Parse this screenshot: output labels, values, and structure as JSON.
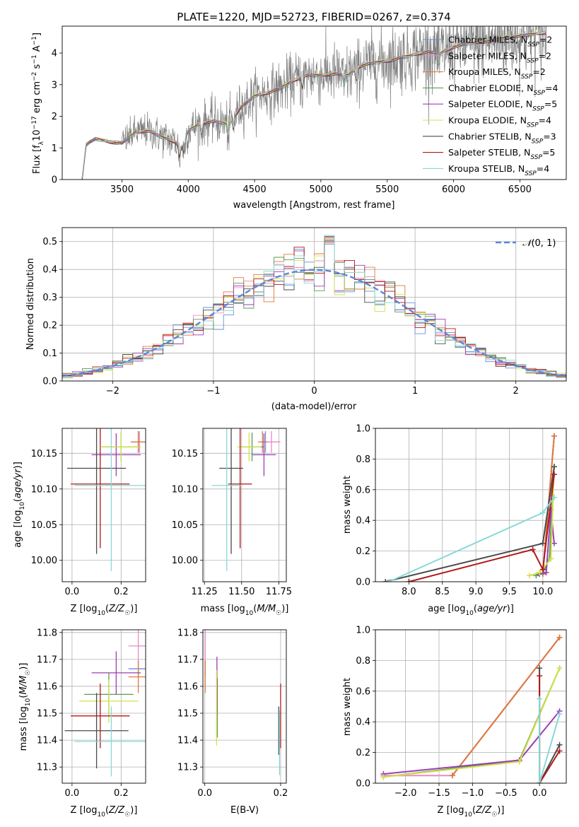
{
  "colors": {
    "chabrier_miles": "#6a8fd8",
    "salpeter_miles": "#e88ac8",
    "kroupa_miles": "#e07a3a",
    "chabrier_elodie": "#5a9a5a",
    "salpeter_elodie": "#9b3fb5",
    "kroupa_elodie": "#d4e04a",
    "chabrier_stelib": "#4a4a4a",
    "salpeter_stelib": "#b01818",
    "kroupa_stelib": "#88d8d8",
    "gaussian": "#5b86d9",
    "data": "#808080",
    "grid": "#b0b0b0"
  },
  "chart_data": [
    {
      "id": "spectrum",
      "type": "line",
      "title": "PLATE=1220, MJD=52723, FIBERID=0267, z=0.374",
      "xlabel": "wavelength [Angstrom, rest frame]",
      "ylabel": "Flux [f_λ 10^-17 erg cm^-2 s^-1 A^-1]",
      "xlim": [
        3050,
        6850
      ],
      "ylim": [
        0,
        4.85
      ],
      "xticks": [
        3500,
        4000,
        4500,
        5000,
        5500,
        6000,
        6500
      ],
      "yticks": [
        0,
        1,
        2,
        3,
        4
      ],
      "grid": false,
      "legend_position": "top-right",
      "continuum_points": [
        [
          3200,
          0.02
        ],
        [
          3230,
          1.1
        ],
        [
          3300,
          1.3
        ],
        [
          3400,
          1.2
        ],
        [
          3500,
          1.15
        ],
        [
          3600,
          1.5
        ],
        [
          3700,
          1.55
        ],
        [
          3800,
          1.35
        ],
        [
          3900,
          1.2
        ],
        [
          3950,
          1.0
        ],
        [
          4000,
          1.55
        ],
        [
          4100,
          1.8
        ],
        [
          4200,
          1.85
        ],
        [
          4300,
          1.75
        ],
        [
          4400,
          2.3
        ],
        [
          4500,
          2.65
        ],
        [
          4600,
          2.75
        ],
        [
          4700,
          2.9
        ],
        [
          4800,
          3.15
        ],
        [
          4900,
          3.3
        ],
        [
          5000,
          3.3
        ],
        [
          5100,
          3.35
        ],
        [
          5200,
          3.3
        ],
        [
          5300,
          3.6
        ],
        [
          5400,
          3.7
        ],
        [
          5500,
          3.75
        ],
        [
          5600,
          3.85
        ],
        [
          5700,
          3.95
        ],
        [
          5800,
          4.05
        ],
        [
          5900,
          4.0
        ],
        [
          6000,
          4.2
        ],
        [
          6100,
          4.3
        ],
        [
          6200,
          4.35
        ],
        [
          6300,
          4.4
        ],
        [
          6400,
          4.5
        ],
        [
          6500,
          4.55
        ],
        [
          6600,
          4.6
        ],
        [
          6700,
          4.65
        ]
      ],
      "series": [
        {
          "name": "Chabrier MILES, N_SSP=2",
          "color_key": "chabrier_miles"
        },
        {
          "name": "Salpeter MILES, N_SSP=2",
          "color_key": "salpeter_miles"
        },
        {
          "name": "Kroupa MILES, N_SSP=2",
          "color_key": "kroupa_miles"
        },
        {
          "name": "Chabrier ELODIE, N_SSP=4",
          "color_key": "chabrier_elodie"
        },
        {
          "name": "Salpeter ELODIE, N_SSP=5",
          "color_key": "salpeter_elodie"
        },
        {
          "name": "Kroupa ELODIE, N_SSP=4",
          "color_key": "kroupa_elodie"
        },
        {
          "name": "Chabrier STELIB, N_SSP=3",
          "color_key": "chabrier_stelib"
        },
        {
          "name": "Salpeter STELIB, N_SSP=5",
          "color_key": "salpeter_stelib"
        },
        {
          "name": "Kroupa STELIB, N_SSP=4",
          "color_key": "kroupa_stelib"
        }
      ]
    },
    {
      "id": "residuals",
      "type": "histogram",
      "xlabel": "(data-model)/error",
      "ylabel": "Normed distribution",
      "xlim": [
        -2.5,
        2.5
      ],
      "ylim": [
        0,
        0.55
      ],
      "xticks": [
        -2,
        -1,
        0,
        1,
        2
      ],
      "yticks": [
        0.0,
        0.1,
        0.2,
        0.3,
        0.4,
        0.5
      ],
      "grid": true,
      "legend_position": "top-right",
      "legend": [
        "N(0, 1)"
      ],
      "bin_width": 0.1,
      "gaussian": {
        "mean": 0,
        "sigma": 1
      }
    },
    {
      "id": "age_vs_Z",
      "type": "errorbar",
      "xlabel": "Z [log10(Z/Z☉)]",
      "ylabel": "age  [log10(age/yr)]",
      "xlim": [
        -0.04,
        0.3
      ],
      "ylim": [
        9.97,
        10.185
      ],
      "xticks": [
        0.0,
        0.2
      ],
      "yticks": [
        10.0,
        10.05,
        10.1,
        10.15
      ],
      "grid": true,
      "points": [
        {
          "c": "chabrier_miles",
          "x": 0.27,
          "xe": 0.03,
          "y": 10.166,
          "ye": 0.015
        },
        {
          "c": "salpeter_miles",
          "x": 0.275,
          "xe": 0.03,
          "y": 10.166,
          "ye": 0.015
        },
        {
          "c": "kroupa_miles",
          "x": 0.27,
          "xe": 0.03,
          "y": 10.166,
          "ye": 0.015
        },
        {
          "c": "chabrier_elodie",
          "x": 0.2,
          "xe": 0.08,
          "y": 10.159,
          "ye": 0.02
        },
        {
          "c": "salpeter_elodie",
          "x": 0.18,
          "xe": 0.1,
          "y": 10.148,
          "ye": 0.03
        },
        {
          "c": "kroupa_elodie",
          "x": 0.2,
          "xe": 0.08,
          "y": 10.159,
          "ye": 0.02
        },
        {
          "c": "chabrier_stelib",
          "x": 0.1,
          "xe": 0.12,
          "y": 10.129,
          "ye": 0.12
        },
        {
          "c": "salpeter_stelib",
          "x": 0.115,
          "xe": 0.12,
          "y": 10.107,
          "ye": 0.09
        },
        {
          "c": "kroupa_stelib",
          "x": 0.16,
          "xe": 0.15,
          "y": 10.105,
          "ye": 0.12
        }
      ]
    },
    {
      "id": "age_vs_mass",
      "type": "errorbar",
      "xlabel": "mass [log10(M/M☉)]",
      "xlim": [
        11.24,
        11.8
      ],
      "ylim": [
        9.97,
        10.185
      ],
      "xticks": [
        11.25,
        11.5,
        11.75
      ],
      "yticks": [
        10.0,
        10.05,
        10.1,
        10.15
      ],
      "grid": true,
      "points": [
        {
          "c": "chabrier_miles",
          "x": 11.66,
          "xe": 0.03,
          "y": 10.166,
          "ye": 0.015
        },
        {
          "c": "salpeter_miles",
          "x": 11.7,
          "xe": 0.06,
          "y": 10.166,
          "ye": 0.015
        },
        {
          "c": "kroupa_miles",
          "x": 11.64,
          "xe": 0.03,
          "y": 10.166,
          "ye": 0.015
        },
        {
          "c": "chabrier_elodie",
          "x": 11.57,
          "xe": 0.08,
          "y": 10.159,
          "ye": 0.02
        },
        {
          "c": "salpeter_elodie",
          "x": 11.65,
          "xe": 0.08,
          "y": 10.148,
          "ye": 0.03
        },
        {
          "c": "kroupa_elodie",
          "x": 11.55,
          "xe": 0.08,
          "y": 10.159,
          "ye": 0.02
        },
        {
          "c": "chabrier_stelib",
          "x": 11.43,
          "xe": 0.08,
          "y": 10.129,
          "ye": 0.12
        },
        {
          "c": "salpeter_stelib",
          "x": 11.49,
          "xe": 0.08,
          "y": 10.107,
          "ye": 0.09
        },
        {
          "c": "kroupa_stelib",
          "x": 11.4,
          "xe": 0.1,
          "y": 10.105,
          "ye": 0.12
        }
      ]
    },
    {
      "id": "mass_weight_vs_age",
      "type": "line",
      "xlabel": "age  [log10(age/yr)]",
      "ylabel": "mass weight",
      "xlim": [
        7.5,
        10.35
      ],
      "ylim": [
        0,
        1.0
      ],
      "xticks": [
        8.0,
        8.5,
        9.0,
        9.5,
        10.0
      ],
      "yticks": [
        0.0,
        0.2,
        0.4,
        0.6,
        0.8,
        1.0
      ],
      "grid": true,
      "series": [
        {
          "c": "chabrier_miles",
          "x": [
            10.0,
            10.17
          ],
          "y": [
            0.05,
            0.95
          ]
        },
        {
          "c": "salpeter_miles",
          "x": [
            10.0,
            10.17
          ],
          "y": [
            0.05,
            0.95
          ]
        },
        {
          "c": "kroupa_miles",
          "x": [
            10.0,
            10.17
          ],
          "y": [
            0.05,
            0.95
          ]
        },
        {
          "c": "chabrier_elodie",
          "x": [
            9.9,
            10.0,
            10.1,
            10.17
          ],
          "y": [
            0.04,
            0.06,
            0.15,
            0.75
          ]
        },
        {
          "c": "salpeter_elodie",
          "x": [
            9.95,
            10.05,
            10.12,
            10.17
          ],
          "y": [
            0.05,
            0.06,
            0.47,
            0.25
          ]
        },
        {
          "c": "kroupa_elodie",
          "x": [
            9.8,
            9.95,
            10.12,
            10.17
          ],
          "y": [
            0.04,
            0.06,
            0.15,
            0.75
          ]
        },
        {
          "c": "chabrier_stelib",
          "x": [
            7.65,
            10.0,
            10.17
          ],
          "y": [
            0.0,
            0.25,
            0.75
          ]
        },
        {
          "c": "salpeter_stelib",
          "x": [
            8.0,
            9.85,
            10.0,
            10.17
          ],
          "y": [
            0.0,
            0.21,
            0.08,
            0.7
          ]
        },
        {
          "c": "kroupa_stelib",
          "x": [
            7.7,
            10.0,
            10.17
          ],
          "y": [
            0.0,
            0.45,
            0.55
          ]
        }
      ]
    },
    {
      "id": "mass_vs_Z",
      "type": "errorbar",
      "xlabel": "Z [log10(Z/Z☉)]",
      "ylabel": "mass [log10(M/M☉)]",
      "xlim": [
        -0.04,
        0.3
      ],
      "ylim": [
        11.24,
        11.81
      ],
      "xticks": [
        0.0,
        0.2
      ],
      "yticks": [
        11.3,
        11.4,
        11.5,
        11.6,
        11.7,
        11.8
      ],
      "grid": true,
      "points": [
        {
          "c": "chabrier_miles",
          "x": 0.27,
          "xe": 0.04,
          "y": 11.665,
          "ye": 0.03
        },
        {
          "c": "salpeter_miles",
          "x": 0.27,
          "xe": 0.04,
          "y": 11.75,
          "ye": 0.06
        },
        {
          "c": "kroupa_miles",
          "x": 0.27,
          "xe": 0.04,
          "y": 11.635,
          "ye": 0.06
        },
        {
          "c": "chabrier_elodie",
          "x": 0.15,
          "xe": 0.1,
          "y": 11.57,
          "ye": 0.08
        },
        {
          "c": "salpeter_elodie",
          "x": 0.18,
          "xe": 0.1,
          "y": 11.65,
          "ye": 0.08
        },
        {
          "c": "kroupa_elodie",
          "x": 0.15,
          "xe": 0.12,
          "y": 11.545,
          "ye": 0.08
        },
        {
          "c": "chabrier_stelib",
          "x": 0.1,
          "xe": 0.13,
          "y": 11.435,
          "ye": 0.14
        },
        {
          "c": "salpeter_stelib",
          "x": 0.115,
          "xe": 0.12,
          "y": 11.49,
          "ye": 0.12
        },
        {
          "c": "kroupa_stelib",
          "x": 0.16,
          "xe": 0.15,
          "y": 11.395,
          "ye": 0.13
        }
      ]
    },
    {
      "id": "mass_vs_ebv",
      "type": "errorbar",
      "xlabel": "E(B-V)",
      "xlim": [
        -0.005,
        0.215
      ],
      "ylim": [
        11.24,
        11.81
      ],
      "xticks": [
        0.0,
        0.2
      ],
      "yticks": [
        11.3,
        11.4,
        11.5,
        11.6,
        11.7,
        11.8
      ],
      "grid": true,
      "points": [
        {
          "c": "chabrier_miles",
          "x": 0.001,
          "xe": 0,
          "y": 11.665,
          "ye": 0.03
        },
        {
          "c": "salpeter_miles",
          "x": 0.001,
          "xe": 0,
          "y": 11.75,
          "ye": 0.06
        },
        {
          "c": "kroupa_miles",
          "x": 0.001,
          "xe": 0,
          "y": 11.635,
          "ye": 0.06
        },
        {
          "c": "chabrier_elodie",
          "x": 0.033,
          "xe": 0,
          "y": 11.52,
          "ye": 0.11
        },
        {
          "c": "salpeter_elodie",
          "x": 0.032,
          "xe": 0,
          "y": 11.6,
          "ye": 0.11
        },
        {
          "c": "kroupa_elodie",
          "x": 0.031,
          "xe": 0,
          "y": 11.52,
          "ye": 0.14
        },
        {
          "c": "chabrier_stelib",
          "x": 0.195,
          "xe": 0,
          "y": 11.435,
          "ye": 0.09
        },
        {
          "c": "salpeter_stelib",
          "x": 0.2,
          "xe": 0,
          "y": 11.49,
          "ye": 0.12
        },
        {
          "c": "kroupa_stelib",
          "x": 0.197,
          "xe": 0,
          "y": 11.39,
          "ye": 0.12
        }
      ]
    },
    {
      "id": "mass_weight_vs_Z",
      "type": "line",
      "xlabel": "Z [log10(Z/Z☉)]",
      "ylabel": "mass weight",
      "xlim": [
        -2.45,
        0.4
      ],
      "ylim": [
        0,
        1.0
      ],
      "xticks": [
        -2.0,
        -1.5,
        -1.0,
        -0.5,
        0.0
      ],
      "yticks": [
        0.0,
        0.2,
        0.4,
        0.6,
        0.8,
        1.0
      ],
      "grid": true,
      "series": [
        {
          "c": "chabrier_miles",
          "x": [
            -1.3,
            0.3
          ],
          "y": [
            0.05,
            0.95
          ]
        },
        {
          "c": "salpeter_miles",
          "x": [
            -2.33,
            -1.3,
            0.3
          ],
          "y": [
            0.05,
            0.05,
            0.95
          ]
        },
        {
          "c": "kroupa_miles",
          "x": [
            -1.3,
            0.3
          ],
          "y": [
            0.05,
            0.95
          ]
        },
        {
          "c": "chabrier_elodie",
          "x": [
            -2.33,
            -0.3,
            0.3
          ],
          "y": [
            0.04,
            0.15,
            0.75
          ]
        },
        {
          "c": "salpeter_elodie",
          "x": [
            -2.33,
            -0.3,
            0.3
          ],
          "y": [
            0.06,
            0.15,
            0.47
          ]
        },
        {
          "c": "kroupa_elodie",
          "x": [
            -2.33,
            -0.3,
            0.3
          ],
          "y": [
            0.04,
            0.14,
            0.75
          ]
        },
        {
          "c": "chabrier_stelib",
          "x": [
            0.0,
            0.0,
            0.3
          ],
          "y": [
            0.75,
            0.0,
            0.25
          ]
        },
        {
          "c": "salpeter_stelib",
          "x": [
            0.0,
            0.0,
            0.3
          ],
          "y": [
            0.7,
            0.0,
            0.21
          ]
        },
        {
          "c": "kroupa_stelib",
          "x": [
            0.0,
            0.0,
            0.3
          ],
          "y": [
            0.55,
            0.0,
            0.45
          ]
        }
      ]
    }
  ]
}
